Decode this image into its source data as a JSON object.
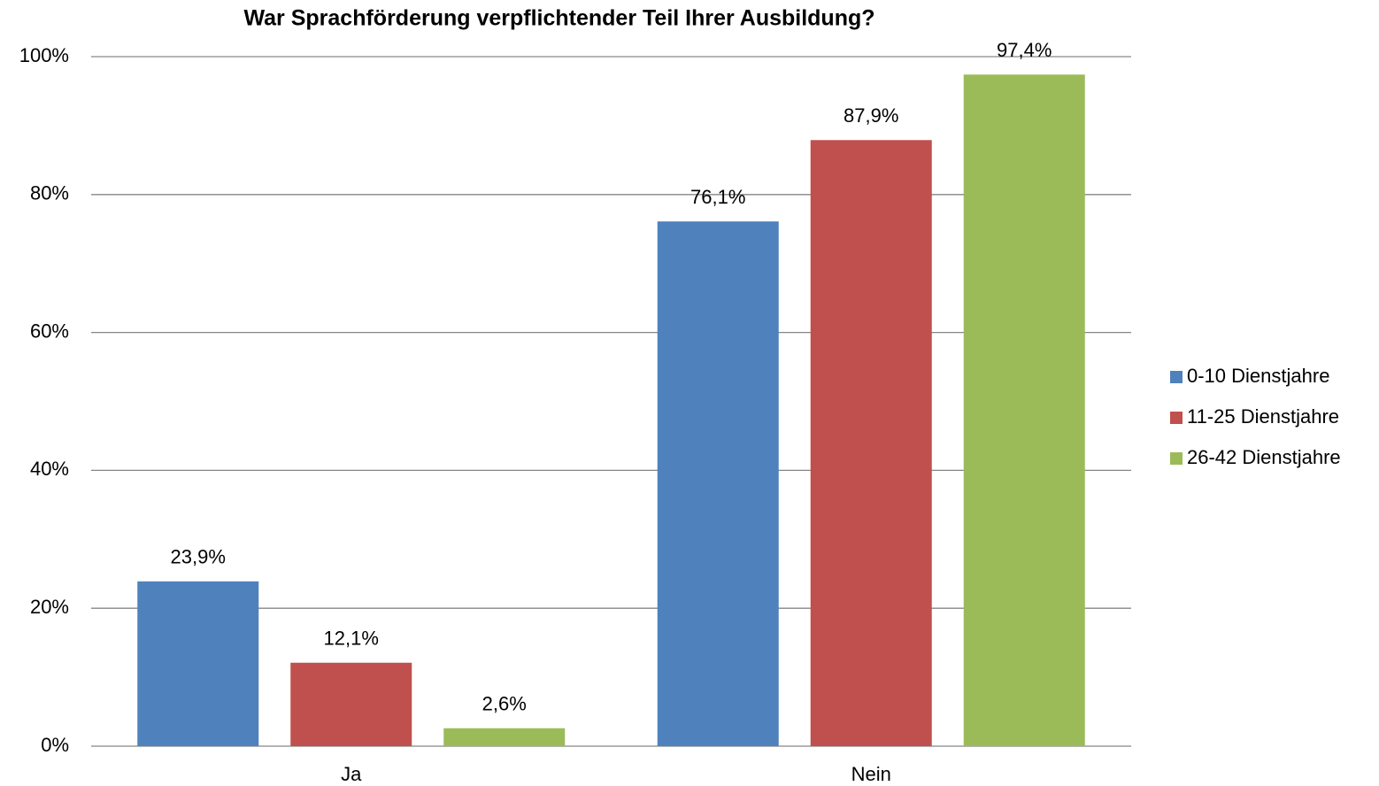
{
  "chart_data": {
    "type": "bar",
    "title": "War Sprachförderung verpflichtender Teil Ihrer Ausbildung?",
    "categories": [
      "Ja",
      "Nein"
    ],
    "series": [
      {
        "name": "0-10 Dienstjahre",
        "color": "#4f81bd",
        "values": [
          23.9,
          76.1
        ],
        "value_labels": [
          "23,9%",
          "76,1%"
        ]
      },
      {
        "name": "11-25 Dienstjahre",
        "color": "#c0504d",
        "values": [
          12.1,
          87.9
        ],
        "value_labels": [
          "12,1%",
          "87,9%"
        ]
      },
      {
        "name": "26-42 Dienstjahre",
        "color": "#9bbb59",
        "values": [
          2.6,
          97.4
        ],
        "value_labels": [
          "2,6%",
          "97,4%"
        ]
      }
    ],
    "ylim": [
      0,
      100
    ],
    "yticks": [
      {
        "value": 0,
        "label": "0%"
      },
      {
        "value": 20,
        "label": "20%"
      },
      {
        "value": 40,
        "label": "40%"
      },
      {
        "value": 60,
        "label": "60%"
      },
      {
        "value": 80,
        "label": "80%"
      },
      {
        "value": 100,
        "label": "100%"
      }
    ],
    "grid": true,
    "legend": "right"
  }
}
